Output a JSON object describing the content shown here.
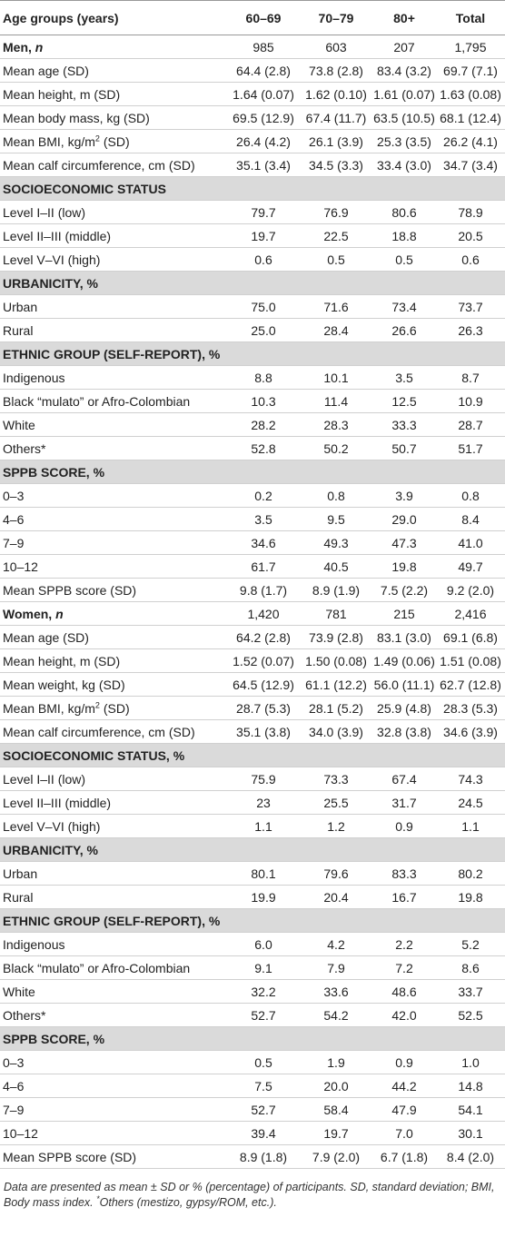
{
  "table": {
    "header": [
      "Age groups (years)",
      "60–69",
      "70–79",
      "80+",
      "Total"
    ],
    "rows": [
      {
        "label": [
          {
            "b": "Men, "
          },
          {
            "bi": "n"
          }
        ],
        "values": [
          "985",
          "603",
          "207",
          "1,795"
        ]
      },
      {
        "label": [
          {
            "t": "Mean age (SD)"
          }
        ],
        "values": [
          "64.4 (2.8)",
          "73.8 (2.8)",
          "83.4 (3.2)",
          "69.7 (7.1)"
        ]
      },
      {
        "label": [
          {
            "t": "Mean height, m (SD)"
          }
        ],
        "values": [
          "1.64 (0.07)",
          "1.62 (0.10)",
          "1.61 (0.07)",
          "1.63 (0.08)"
        ]
      },
      {
        "label": [
          {
            "t": "Mean body mass, kg (SD)"
          }
        ],
        "values": [
          "69.5 (12.9)",
          "67.4 (11.7)",
          "63.5 (10.5)",
          "68.1 (12.4)"
        ]
      },
      {
        "label": [
          {
            "t": "Mean BMI, kg/m"
          },
          {
            "sup": "2"
          },
          {
            "t": " (SD)"
          }
        ],
        "values": [
          "26.4 (4.2)",
          "26.1 (3.9)",
          "25.3 (3.5)",
          "26.2 (4.1)"
        ]
      },
      {
        "label": [
          {
            "t": "Mean calf circumference, cm (SD)"
          }
        ],
        "values": [
          "35.1 (3.4)",
          "34.5 (3.3)",
          "33.4 (3.0)",
          "34.7 (3.4)"
        ]
      },
      {
        "section": "SOCIOECONOMIC STATUS"
      },
      {
        "label": [
          {
            "t": "Level I–II (low)"
          }
        ],
        "values": [
          "79.7",
          "76.9",
          "80.6",
          "78.9"
        ]
      },
      {
        "label": [
          {
            "t": "Level II–III (middle)"
          }
        ],
        "values": [
          "19.7",
          "22.5",
          "18.8",
          "20.5"
        ]
      },
      {
        "label": [
          {
            "t": "Level V–VI (high)"
          }
        ],
        "values": [
          "0.6",
          "0.5",
          "0.5",
          "0.6"
        ]
      },
      {
        "section": "URBANICITY, %"
      },
      {
        "label": [
          {
            "t": "Urban"
          }
        ],
        "values": [
          "75.0",
          "71.6",
          "73.4",
          "73.7"
        ]
      },
      {
        "label": [
          {
            "t": "Rural"
          }
        ],
        "values": [
          "25.0",
          "28.4",
          "26.6",
          "26.3"
        ]
      },
      {
        "section": "ETHNIC GROUP (SELF-REPORT), %"
      },
      {
        "label": [
          {
            "t": "Indigenous"
          }
        ],
        "values": [
          "8.8",
          "10.1",
          "3.5",
          "8.7"
        ]
      },
      {
        "label": [
          {
            "t": "Black “mulato” or Afro-Colombian"
          }
        ],
        "values": [
          "10.3",
          "11.4",
          "12.5",
          "10.9"
        ]
      },
      {
        "label": [
          {
            "t": "White"
          }
        ],
        "values": [
          "28.2",
          "28.3",
          "33.3",
          "28.7"
        ]
      },
      {
        "label": [
          {
            "t": "Others*"
          }
        ],
        "values": [
          "52.8",
          "50.2",
          "50.7",
          "51.7"
        ]
      },
      {
        "section": "SPPB SCORE, %"
      },
      {
        "label": [
          {
            "t": "0–3"
          }
        ],
        "values": [
          "0.2",
          "0.8",
          "3.9",
          "0.8"
        ]
      },
      {
        "label": [
          {
            "t": "4–6"
          }
        ],
        "values": [
          "3.5",
          "9.5",
          "29.0",
          "8.4"
        ]
      },
      {
        "label": [
          {
            "t": "7–9"
          }
        ],
        "values": [
          "34.6",
          "49.3",
          "47.3",
          "41.0"
        ]
      },
      {
        "label": [
          {
            "t": "10–12"
          }
        ],
        "values": [
          "61.7",
          "40.5",
          "19.8",
          "49.7"
        ]
      },
      {
        "label": [
          {
            "t": "Mean SPPB score (SD)"
          }
        ],
        "values": [
          "9.8 (1.7)",
          "8.9 (1.9)",
          "7.5 (2.2)",
          "9.2 (2.0)"
        ]
      },
      {
        "label": [
          {
            "b": "Women, "
          },
          {
            "bi": "n"
          }
        ],
        "values": [
          "1,420",
          "781",
          "215",
          "2,416"
        ]
      },
      {
        "label": [
          {
            "t": "Mean age (SD)"
          }
        ],
        "values": [
          "64.2 (2.8)",
          "73.9 (2.8)",
          "83.1 (3.0)",
          "69.1 (6.8)"
        ]
      },
      {
        "label": [
          {
            "t": "Mean height, m (SD)"
          }
        ],
        "values": [
          "1.52 (0.07)",
          "1.50 (0.08)",
          "1.49 (0.06)",
          "1.51 (0.08)"
        ]
      },
      {
        "label": [
          {
            "t": "Mean weight, kg (SD)"
          }
        ],
        "values": [
          "64.5 (12.9)",
          "61.1 (12.2)",
          "56.0 (11.1)",
          "62.7 (12.8)"
        ]
      },
      {
        "label": [
          {
            "t": "Mean BMI, kg/m"
          },
          {
            "sup": "2"
          },
          {
            "t": " (SD)"
          }
        ],
        "values": [
          "28.7 (5.3)",
          "28.1 (5.2)",
          "25.9 (4.8)",
          "28.3 (5.3)"
        ]
      },
      {
        "label": [
          {
            "t": "Mean calf circumference, cm (SD)"
          }
        ],
        "values": [
          "35.1 (3.8)",
          "34.0 (3.9)",
          "32.8 (3.8)",
          "34.6 (3.9)"
        ]
      },
      {
        "section": "SOCIOECONOMIC STATUS, %"
      },
      {
        "label": [
          {
            "t": "Level I–II (low)"
          }
        ],
        "values": [
          "75.9",
          "73.3",
          "67.4",
          "74.3"
        ]
      },
      {
        "label": [
          {
            "t": "Level II–III (middle)"
          }
        ],
        "values": [
          "23",
          "25.5",
          "31.7",
          "24.5"
        ]
      },
      {
        "label": [
          {
            "t": "Level V–VI (high)"
          }
        ],
        "values": [
          "1.1",
          "1.2",
          "0.9",
          "1.1"
        ]
      },
      {
        "section": "URBANICITY, %"
      },
      {
        "label": [
          {
            "t": "Urban"
          }
        ],
        "values": [
          "80.1",
          "79.6",
          "83.3",
          "80.2"
        ]
      },
      {
        "label": [
          {
            "t": "Rural"
          }
        ],
        "values": [
          "19.9",
          "20.4",
          "16.7",
          "19.8"
        ]
      },
      {
        "section": "ETHNIC GROUP (SELF-REPORT), %"
      },
      {
        "label": [
          {
            "t": "Indigenous"
          }
        ],
        "values": [
          "6.0",
          "4.2",
          "2.2",
          "5.2"
        ]
      },
      {
        "label": [
          {
            "t": "Black “mulato” or Afro-Colombian"
          }
        ],
        "values": [
          "9.1",
          "7.9",
          "7.2",
          "8.6"
        ]
      },
      {
        "label": [
          {
            "t": "White"
          }
        ],
        "values": [
          "32.2",
          "33.6",
          "48.6",
          "33.7"
        ]
      },
      {
        "label": [
          {
            "t": "Others*"
          }
        ],
        "values": [
          "52.7",
          "54.2",
          "42.0",
          "52.5"
        ]
      },
      {
        "section": "SPPB SCORE, %"
      },
      {
        "label": [
          {
            "t": "0–3"
          }
        ],
        "values": [
          "0.5",
          "1.9",
          "0.9",
          "1.0"
        ]
      },
      {
        "label": [
          {
            "t": "4–6"
          }
        ],
        "values": [
          "7.5",
          "20.0",
          "44.2",
          "14.8"
        ]
      },
      {
        "label": [
          {
            "t": "7–9"
          }
        ],
        "values": [
          "52.7",
          "58.4",
          "47.9",
          "54.1"
        ]
      },
      {
        "label": [
          {
            "t": "10–12"
          }
        ],
        "values": [
          "39.4",
          "19.7",
          "7.0",
          "30.1"
        ]
      },
      {
        "label": [
          {
            "t": "Mean SPPB score (SD)"
          }
        ],
        "values": [
          "8.9 (1.8)",
          "7.9 (2.0)",
          "6.7 (1.8)",
          "8.4 (2.0)"
        ]
      }
    ],
    "footnote": [
      {
        "t": "Data are presented as mean ± SD or % (percentage) of participants. SD, standard deviation; BMI, Body mass index. "
      },
      {
        "sup": "*"
      },
      {
        "t": "Others (mestizo, gypsy/ROM, etc.)."
      }
    ]
  }
}
